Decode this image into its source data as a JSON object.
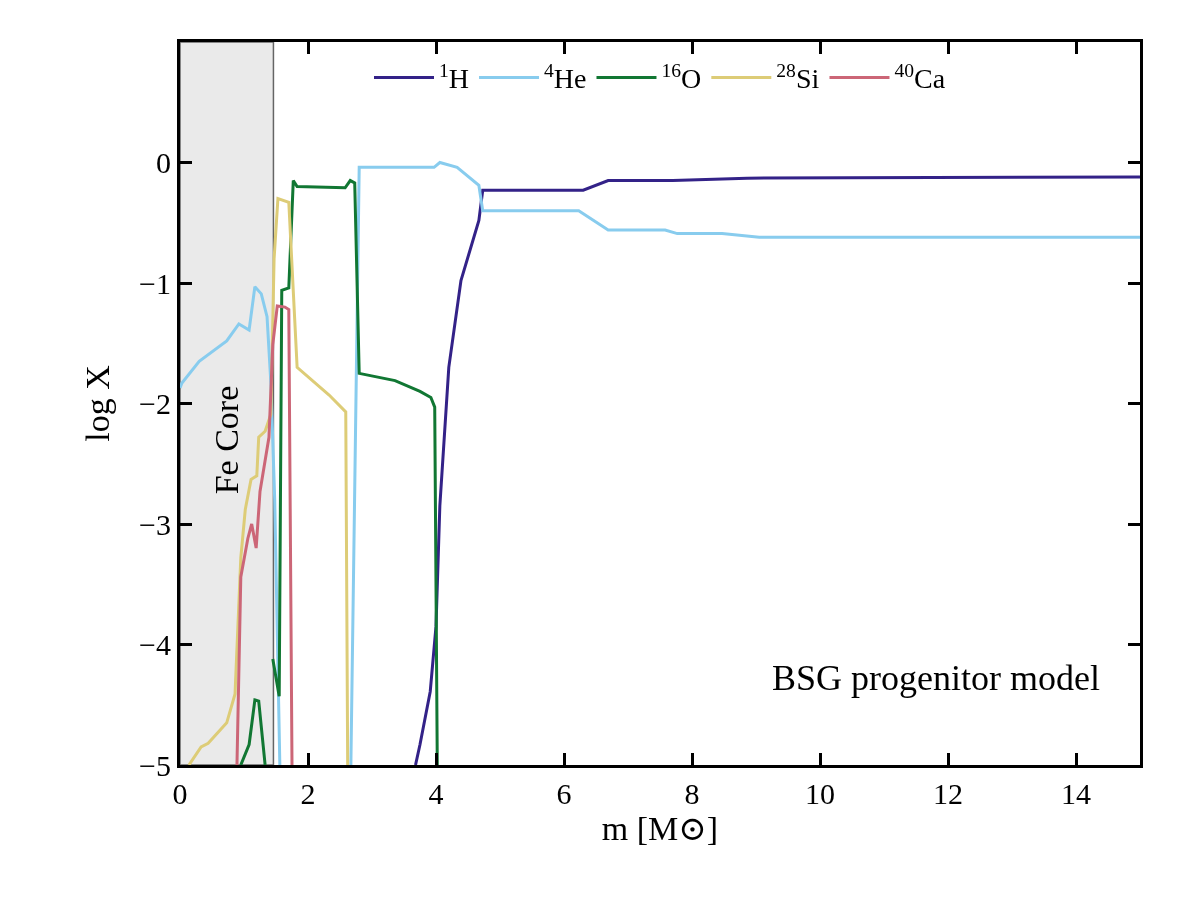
{
  "chart_data": {
    "type": "line",
    "xlabel": "m [M⊙]",
    "ylabel": "log X",
    "xlim": [
      0,
      15
    ],
    "ylim": [
      -5,
      1
    ],
    "xticks": [
      0,
      2,
      4,
      6,
      8,
      10,
      12,
      14
    ],
    "yticks": [
      -5,
      -4,
      -3,
      -2,
      -1,
      0
    ],
    "legend": "top",
    "grid": false,
    "series": [
      {
        "name": "$^{1}$H",
        "color": "#332288",
        "x": [
          3.68,
          3.75,
          3.91,
          4.0,
          4.06,
          4.2,
          4.39,
          4.67,
          4.73,
          6.3,
          6.69,
          7.7,
          8.86,
          15
        ],
        "values": [
          -5,
          -4.83,
          -4.39,
          -3.85,
          -2.85,
          -1.7,
          -0.98,
          -0.48,
          -0.23,
          -0.23,
          -0.15,
          -0.15,
          -0.13,
          -0.12
        ]
      },
      {
        "name": "$^{4}$He",
        "color": "#88ccee",
        "x": [
          0.0,
          0.03,
          0.3,
          0.73,
          0.92,
          1.08,
          1.17,
          1.27,
          1.36,
          1.42,
          1.48,
          1.56,
          null,
          2.67,
          2.8,
          3.97,
          4.06,
          4.33,
          4.67,
          4.73,
          6.23,
          6.69,
          7.58,
          7.77,
          8.47,
          9.05,
          15
        ],
        "values": [
          -1.87,
          -1.83,
          -1.65,
          -1.48,
          -1.34,
          -1.39,
          -1.03,
          -1.09,
          -1.28,
          -1.83,
          -2.8,
          -5,
          null,
          -5,
          -0.04,
          -0.04,
          0,
          -0.04,
          -0.19,
          -0.4,
          -0.4,
          -0.56,
          -0.56,
          -0.59,
          -0.59,
          -0.62,
          -0.62
        ]
      },
      {
        "name": "$^{16}$O",
        "color": "#117733",
        "x": [
          0.95,
          1.08,
          1.17,
          1.23,
          1.33,
          null,
          1.45,
          1.55,
          1.59,
          1.7,
          1.77,
          1.83,
          2.58,
          2.66,
          2.73,
          2.8,
          3.36,
          3.75,
          3.92,
          3.98,
          4.02
        ],
        "values": [
          -5,
          -4.83,
          -4.46,
          -4.47,
          -5,
          null,
          -4.12,
          -4.43,
          -1.06,
          -1.04,
          -0.15,
          -0.2,
          -0.21,
          -0.15,
          -0.17,
          -1.75,
          -1.81,
          -1.9,
          -1.95,
          -2.03,
          -5
        ]
      },
      {
        "name": "$^{28}$Si",
        "color": "#ddcc77",
        "x": [
          0.14,
          0.33,
          0.44,
          0.73,
          0.86,
          0.95,
          1.02,
          1.11,
          1.2,
          1.23,
          1.33,
          1.42,
          1.47,
          1.53,
          1.7,
          1.83,
          2.33,
          2.59,
          2.62
        ],
        "values": [
          -5,
          -4.85,
          -4.82,
          -4.65,
          -4.41,
          -3.28,
          -2.88,
          -2.63,
          -2.6,
          -2.28,
          -2.23,
          -2.09,
          -0.8,
          -0.3,
          -0.33,
          -1.7,
          -1.93,
          -2.07,
          -5
        ]
      },
      {
        "name": "$^{40}$Ca",
        "color": "#cc6677",
        "x": [
          0.89,
          0.95,
          1.06,
          1.12,
          1.19,
          1.25,
          1.39,
          1.45,
          1.52,
          1.64,
          1.7,
          1.75
        ],
        "values": [
          -5,
          -3.44,
          -3.12,
          -3.0,
          -3.2,
          -2.73,
          -2.28,
          -1.51,
          -1.19,
          -1.2,
          -1.22,
          -5
        ]
      }
    ],
    "bands": [
      {
        "axis": "x",
        "from": 0,
        "to": 1.46,
        "label": "Fe Core",
        "color": "#dddddd"
      }
    ],
    "annotations": [
      "BSG progenitor model"
    ]
  }
}
